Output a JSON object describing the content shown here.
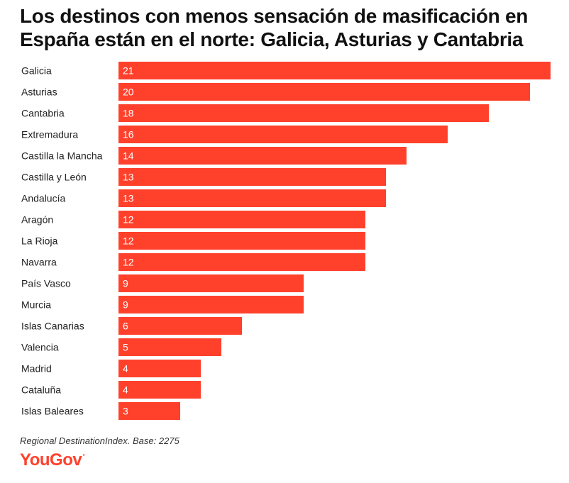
{
  "title": "Los destinos con menos sensación de masificación en España están en el norte: Galicia, Asturias y Cantabria",
  "source": "Regional DestinationIndex. Base: 2275",
  "logo": {
    "text": "YouGov",
    "mark": "·",
    "color": "#ff412c"
  },
  "colors": {
    "bar": "#ff412c",
    "label": "#222222",
    "value": "#ffffff"
  },
  "chart_data": {
    "type": "bar",
    "orientation": "horizontal",
    "categories": [
      "Galicia",
      "Asturias",
      "Cantabria",
      "Extremadura",
      "Castilla la Mancha",
      "Castilla y León",
      "Andalucía",
      "Aragón",
      "La Rioja",
      "Navarra",
      "País Vasco",
      "Murcia",
      "Islas Canarias",
      "Valencia",
      "Madrid",
      "Cataluña",
      "Islas Baleares"
    ],
    "values": [
      21,
      20,
      18,
      16,
      14,
      13,
      13,
      12,
      12,
      12,
      9,
      9,
      6,
      5,
      4,
      4,
      3
    ],
    "data_labels": true,
    "grid": false,
    "legend": "none",
    "xlim": [
      0,
      21
    ]
  }
}
